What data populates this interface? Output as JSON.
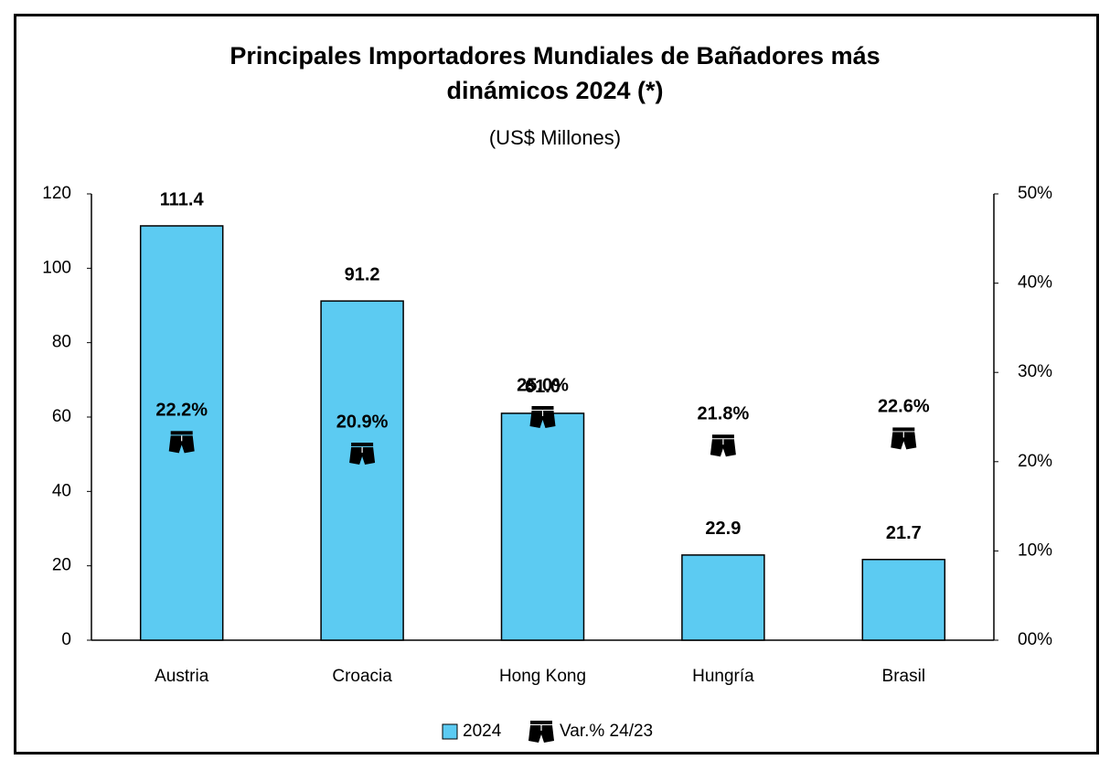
{
  "chart_data": {
    "type": "bar",
    "title": "Principales Importadores Mundiales de Bañadores más dinámicos 2024 (*)",
    "subtitle": "(US$ Millones)",
    "categories": [
      "Austria",
      "Croacia",
      "Hong Kong",
      "Hungría",
      "Brasil"
    ],
    "series": [
      {
        "name": "2024",
        "color": "#5ccbf2",
        "values": [
          111.4,
          91.2,
          61.0,
          22.9,
          21.7
        ],
        "value_labels": [
          "111.4",
          "91.2",
          "61.0",
          "22.9",
          "21.7"
        ]
      },
      {
        "name": "Var.% 24/23",
        "type": "marker",
        "axis": "y2",
        "color": "#000000",
        "values": [
          22.2,
          20.9,
          25.0,
          21.8,
          22.6
        ],
        "value_labels": [
          "22.2%",
          "20.9%",
          "25.0%",
          "21.8%",
          "22.6%"
        ]
      }
    ],
    "ylim": [
      0,
      120
    ],
    "yticks": [
      0,
      20,
      40,
      60,
      80,
      100,
      120
    ],
    "y2lim": [
      0,
      50
    ],
    "y2ticks": [
      {
        "value": 0,
        "label": "00%"
      },
      {
        "value": 10,
        "label": "10%"
      },
      {
        "value": 20,
        "label": "20%"
      },
      {
        "value": 30,
        "label": "30%"
      },
      {
        "value": 40,
        "label": "40%"
      },
      {
        "value": 50,
        "label": "50%"
      }
    ],
    "legend": "bottom"
  }
}
